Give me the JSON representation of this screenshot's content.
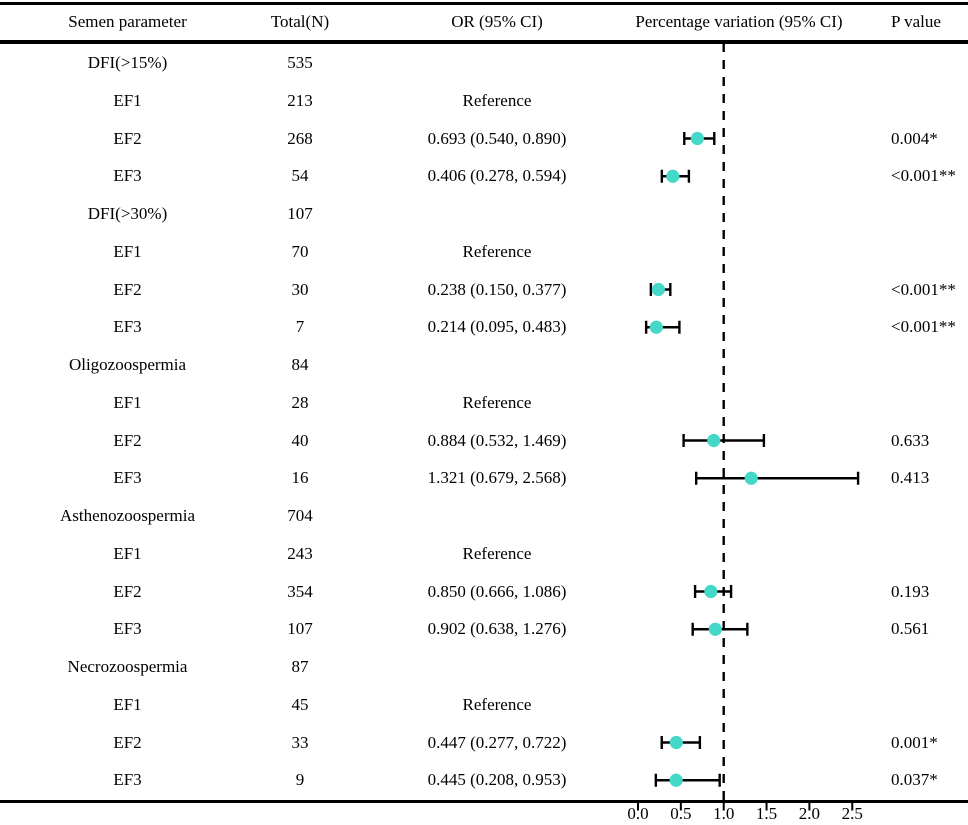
{
  "chart_data": {
    "type": "forest",
    "headers": [
      "Semen parameter",
      "Total(N)",
      "OR (95% CI)",
      "Percentage variation (95% CI)",
      "P value"
    ],
    "rows": [
      {
        "param": "DFI(>15%)",
        "group": true,
        "total": "535",
        "or": "",
        "p": ""
      },
      {
        "param": "EF1",
        "group": false,
        "total": "213",
        "or": "Reference",
        "p": ""
      },
      {
        "param": "EF2",
        "group": false,
        "total": "268",
        "or": "0.693 (0.540, 0.890)",
        "est": 0.693,
        "lo": 0.54,
        "hi": 0.89,
        "p": "0.004*"
      },
      {
        "param": "EF3",
        "group": false,
        "total": "54",
        "or": "0.406 (0.278, 0.594)",
        "est": 0.406,
        "lo": 0.278,
        "hi": 0.594,
        "p": "<0.001**"
      },
      {
        "param": "DFI(>30%)",
        "group": true,
        "total": "107",
        "or": "",
        "p": ""
      },
      {
        "param": "EF1",
        "group": false,
        "total": "70",
        "or": "Reference",
        "p": ""
      },
      {
        "param": "EF2",
        "group": false,
        "total": "30",
        "or": "0.238 (0.150, 0.377)",
        "est": 0.238,
        "lo": 0.15,
        "hi": 0.377,
        "p": "<0.001**"
      },
      {
        "param": "EF3",
        "group": false,
        "total": "7",
        "or": "0.214 (0.095, 0.483)",
        "est": 0.214,
        "lo": 0.095,
        "hi": 0.483,
        "p": "<0.001**"
      },
      {
        "param": "Oligozoospermia",
        "group": true,
        "total": "84",
        "or": "",
        "p": ""
      },
      {
        "param": "EF1",
        "group": false,
        "total": "28",
        "or": "Reference",
        "p": ""
      },
      {
        "param": "EF2",
        "group": false,
        "total": "40",
        "or": "0.884 (0.532, 1.469)",
        "est": 0.884,
        "lo": 0.532,
        "hi": 1.469,
        "p": "0.633"
      },
      {
        "param": "EF3",
        "group": false,
        "total": "16",
        "or": "1.321 (0.679, 2.568)",
        "est": 1.321,
        "lo": 0.679,
        "hi": 2.568,
        "p": "0.413"
      },
      {
        "param": "Asthenozoospermia",
        "group": true,
        "total": "704",
        "or": "",
        "p": ""
      },
      {
        "param": "EF1",
        "group": false,
        "total": "243",
        "or": "Reference",
        "p": ""
      },
      {
        "param": "EF2",
        "group": false,
        "total": "354",
        "or": "0.850 (0.666, 1.086)",
        "est": 0.85,
        "lo": 0.666,
        "hi": 1.086,
        "p": "0.193"
      },
      {
        "param": "EF3",
        "group": false,
        "total": "107",
        "or": "0.902 (0.638, 1.276)",
        "est": 0.902,
        "lo": 0.638,
        "hi": 1.276,
        "p": "0.561"
      },
      {
        "param": "Necrozoospermia",
        "group": true,
        "total": "87",
        "or": "",
        "p": ""
      },
      {
        "param": "EF1",
        "group": false,
        "total": "45",
        "or": "Reference",
        "p": ""
      },
      {
        "param": "EF2",
        "group": false,
        "total": "33",
        "or": "0.447 (0.277, 0.722)",
        "est": 0.447,
        "lo": 0.277,
        "hi": 0.722,
        "p": "0.001*"
      },
      {
        "param": "EF3",
        "group": false,
        "total": "9",
        "or": "0.445 (0.208, 0.953)",
        "est": 0.445,
        "lo": 0.208,
        "hi": 0.953,
        "p": "0.037*"
      }
    ],
    "axis": {
      "tick_labels": [
        "0.0",
        "0.5",
        "1.0",
        "1.5",
        "2.0",
        "2.5"
      ],
      "tick_values": [
        0.0,
        0.5,
        1.0,
        1.5,
        2.0,
        2.5
      ],
      "range": [
        0.0,
        2.5
      ],
      "reference_line": 1.0
    },
    "legend_position": "none",
    "grid": false,
    "colors": {
      "marker": "#45d8c8",
      "error_bar": "#000000",
      "reference_line": "#000000",
      "text": "#000000",
      "background": "#ffffff"
    }
  }
}
